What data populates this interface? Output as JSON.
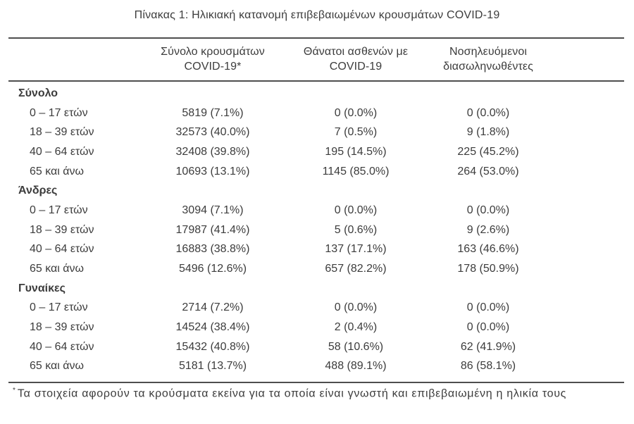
{
  "caption": "Πίνακας 1: Ηλικιακή κατανομή επιβεβαιωμένων κρουσμάτων COVID-19",
  "columns": [
    {
      "line1": "Σύνολο κρουσμάτων",
      "line2": "COVID-19*"
    },
    {
      "line1": "Θάνατοι ασθενών με",
      "line2": "COVID-19"
    },
    {
      "line1": "Νοσηλευόμενοι",
      "line2": "διασωληνωθέντες"
    }
  ],
  "sections": [
    {
      "label": "Σύνολο",
      "rows": [
        {
          "label": "0 – 17 ετών",
          "cases": "5819 (7.1%)",
          "deaths": "0 (0.0%)",
          "intubated": "0 (0.0%)"
        },
        {
          "label": "18 – 39 ετών",
          "cases": "32573 (40.0%)",
          "deaths": "7 (0.5%)",
          "intubated": "9 (1.8%)"
        },
        {
          "label": "40 – 64 ετών",
          "cases": "32408 (39.8%)",
          "deaths": "195 (14.5%)",
          "intubated": "225 (45.2%)"
        },
        {
          "label": "65 και άνω",
          "cases": "10693 (13.1%)",
          "deaths": "1145 (85.0%)",
          "intubated": "264 (53.0%)"
        }
      ]
    },
    {
      "label": "Άνδρες",
      "rows": [
        {
          "label": "0 – 17 ετών",
          "cases": "3094 (7.1%)",
          "deaths": "0 (0.0%)",
          "intubated": "0 (0.0%)"
        },
        {
          "label": "18 – 39 ετών",
          "cases": "17987 (41.4%)",
          "deaths": "5 (0.6%)",
          "intubated": "9 (2.6%)"
        },
        {
          "label": "40 – 64 ετών",
          "cases": "16883 (38.8%)",
          "deaths": "137 (17.1%)",
          "intubated": "163 (46.6%)"
        },
        {
          "label": "65 και άνω",
          "cases": "5496 (12.6%)",
          "deaths": "657 (82.2%)",
          "intubated": "178 (50.9%)"
        }
      ]
    },
    {
      "label": "Γυναίκες",
      "rows": [
        {
          "label": "0 – 17 ετών",
          "cases": "2714 (7.2%)",
          "deaths": "0 (0.0%)",
          "intubated": "0 (0.0%)"
        },
        {
          "label": "18 – 39 ετών",
          "cases": "14524 (38.4%)",
          "deaths": "2 (0.4%)",
          "intubated": "0 (0.0%)"
        },
        {
          "label": "40 – 64 ετών",
          "cases": "15432 (40.8%)",
          "deaths": "58 (10.6%)",
          "intubated": "62 (41.9%)"
        },
        {
          "label": "65 και άνω",
          "cases": "5181 (13.7%)",
          "deaths": "488 (89.1%)",
          "intubated": "86 (58.1%)"
        }
      ]
    }
  ],
  "footnote": {
    "marker": "*",
    "text": "Τα στοιχεία αφορούν τα κρούσματα εκείνα για τα οποία είναι γνωστή και επιβεβαιωμένη η ηλικία τους"
  },
  "colors": {
    "text": "#3c3c3c",
    "rule": "#4e4e4e",
    "background": "#ffffff"
  }
}
